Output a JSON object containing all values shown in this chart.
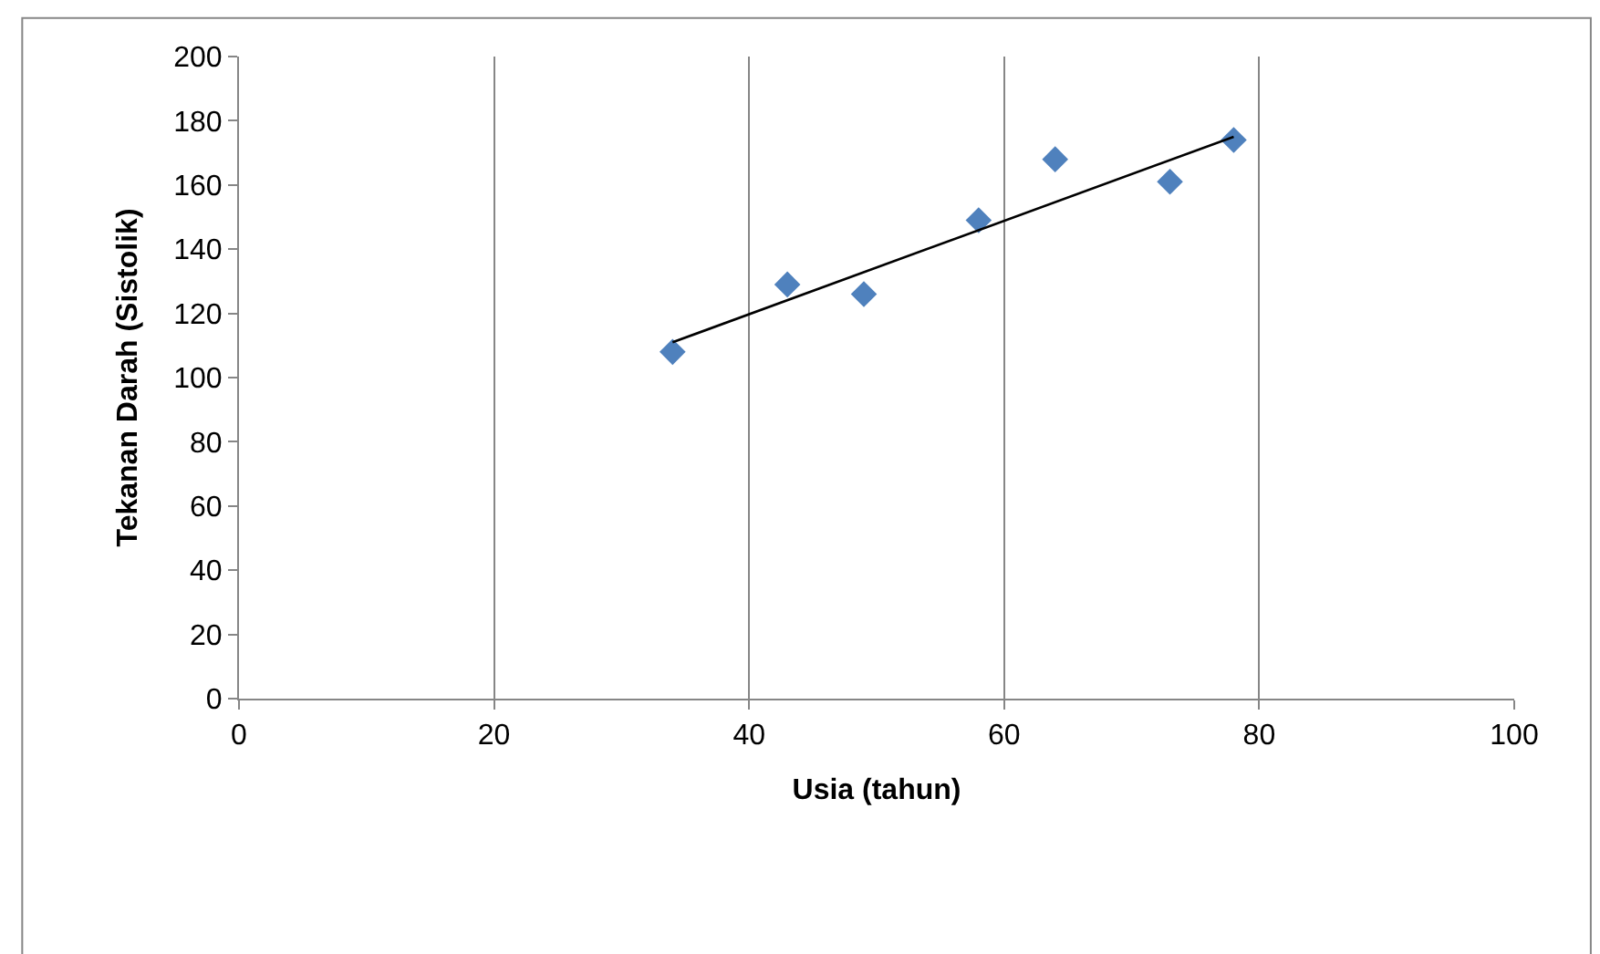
{
  "chart_data": {
    "type": "scatter",
    "xlabel": "Usia (tahun)",
    "ylabel": "Tekanan Darah (Sistolik)",
    "marker": "diamond",
    "grid": "x",
    "xlim": [
      0,
      100
    ],
    "xticks": [
      0,
      20,
      40,
      60,
      80,
      100
    ],
    "ylim": [
      0,
      200
    ],
    "yticks": [
      0,
      20,
      40,
      60,
      80,
      100,
      120,
      140,
      160,
      180,
      200
    ],
    "series": [
      {
        "color": "#4f81bd",
        "x": [
          34,
          43,
          49,
          58,
          64,
          73,
          78
        ],
        "values": [
          108,
          129,
          126,
          149,
          168,
          161,
          174
        ]
      },
      {
        "type": "line",
        "color": "#000000",
        "marker": "none",
        "x": [
          34,
          78
        ],
        "values": [
          111,
          175
        ]
      }
    ]
  }
}
